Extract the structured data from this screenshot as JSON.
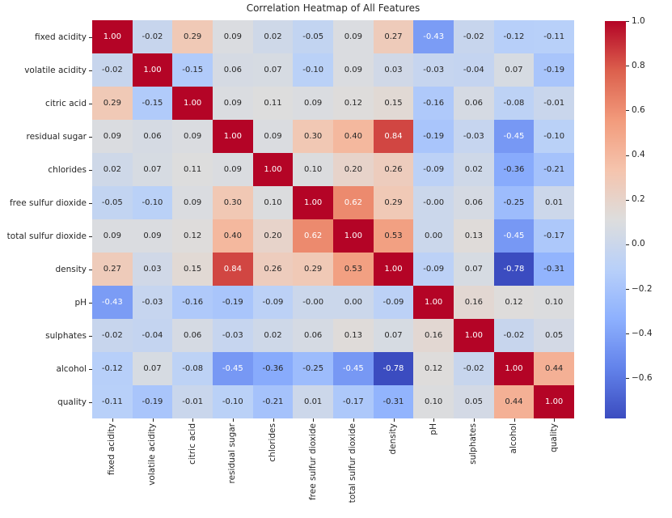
{
  "chart_data": {
    "type": "heatmap",
    "title": "Correlation Heatmap of All Features",
    "features": [
      "fixed acidity",
      "volatile acidity",
      "citric acid",
      "residual sugar",
      "chlorides",
      "free sulfur dioxide",
      "total sulfur dioxide",
      "density",
      "pH",
      "sulphates",
      "alcohol",
      "quality"
    ],
    "matrix": [
      [
        "1.00",
        "-0.02",
        "0.29",
        "0.09",
        "0.02",
        "-0.05",
        "0.09",
        "0.27",
        "-0.43",
        "-0.02",
        "-0.12",
        "-0.11"
      ],
      [
        "-0.02",
        "1.00",
        "-0.15",
        "0.06",
        "0.07",
        "-0.10",
        "0.09",
        "0.03",
        "-0.03",
        "-0.04",
        "0.07",
        "-0.19"
      ],
      [
        "0.29",
        "-0.15",
        "1.00",
        "0.09",
        "0.11",
        "0.09",
        "0.12",
        "0.15",
        "-0.16",
        "0.06",
        "-0.08",
        "-0.01"
      ],
      [
        "0.09",
        "0.06",
        "0.09",
        "1.00",
        "0.09",
        "0.30",
        "0.40",
        "0.84",
        "-0.19",
        "-0.03",
        "-0.45",
        "-0.10"
      ],
      [
        "0.02",
        "0.07",
        "0.11",
        "0.09",
        "1.00",
        "0.10",
        "0.20",
        "0.26",
        "-0.09",
        "0.02",
        "-0.36",
        "-0.21"
      ],
      [
        "-0.05",
        "-0.10",
        "0.09",
        "0.30",
        "0.10",
        "1.00",
        "0.62",
        "0.29",
        "-0.00",
        "0.06",
        "-0.25",
        "0.01"
      ],
      [
        "0.09",
        "0.09",
        "0.12",
        "0.40",
        "0.20",
        "0.62",
        "1.00",
        "0.53",
        "0.00",
        "0.13",
        "-0.45",
        "-0.17"
      ],
      [
        "0.27",
        "0.03",
        "0.15",
        "0.84",
        "0.26",
        "0.29",
        "0.53",
        "1.00",
        "-0.09",
        "0.07",
        "-0.78",
        "-0.31"
      ],
      [
        "-0.43",
        "-0.03",
        "-0.16",
        "-0.19",
        "-0.09",
        "-0.00",
        "0.00",
        "-0.09",
        "1.00",
        "0.16",
        "0.12",
        "0.10"
      ],
      [
        "-0.02",
        "-0.04",
        "0.06",
        "-0.03",
        "0.02",
        "0.06",
        "0.13",
        "0.07",
        "0.16",
        "1.00",
        "-0.02",
        "0.05"
      ],
      [
        "-0.12",
        "0.07",
        "-0.08",
        "-0.45",
        "-0.36",
        "-0.25",
        "-0.45",
        "-0.78",
        "0.12",
        "-0.02",
        "1.00",
        "0.44"
      ],
      [
        "-0.11",
        "-0.19",
        "-0.01",
        "-0.10",
        "-0.21",
        "0.01",
        "-0.17",
        "-0.31",
        "0.10",
        "0.05",
        "0.44",
        "1.00"
      ]
    ],
    "vmin": -0.78,
    "vmax": 1.0,
    "colormap": {
      "name": "coolwarm",
      "stops": [
        {
          "t": 0.0,
          "color": "#3b4cc0"
        },
        {
          "t": 0.125,
          "color": "#6282ea"
        },
        {
          "t": 0.25,
          "color": "#8db0fe"
        },
        {
          "t": 0.375,
          "color": "#b8d0f9"
        },
        {
          "t": 0.5,
          "color": "#dddddd"
        },
        {
          "t": 0.625,
          "color": "#f5c4ad"
        },
        {
          "t": 0.75,
          "color": "#f29b7c"
        },
        {
          "t": 0.875,
          "color": "#dc604d"
        },
        {
          "t": 1.0,
          "color": "#b40426"
        }
      ]
    },
    "annotation_text_colors": {
      "dark": "#262626",
      "light": "#ffffff"
    },
    "colorbar_ticks": [
      {
        "label": "1.0",
        "value": 1.0
      },
      {
        "label": "0.8",
        "value": 0.8
      },
      {
        "label": "0.6",
        "value": 0.6
      },
      {
        "label": "0.4",
        "value": 0.4
      },
      {
        "label": "0.2",
        "value": 0.2
      },
      {
        "label": "0.0",
        "value": 0.0
      },
      {
        "label": "−0.2",
        "value": -0.2
      },
      {
        "label": "−0.4",
        "value": -0.4
      },
      {
        "label": "−0.6",
        "value": -0.6
      }
    ],
    "legend_position": "right",
    "grid": false
  }
}
